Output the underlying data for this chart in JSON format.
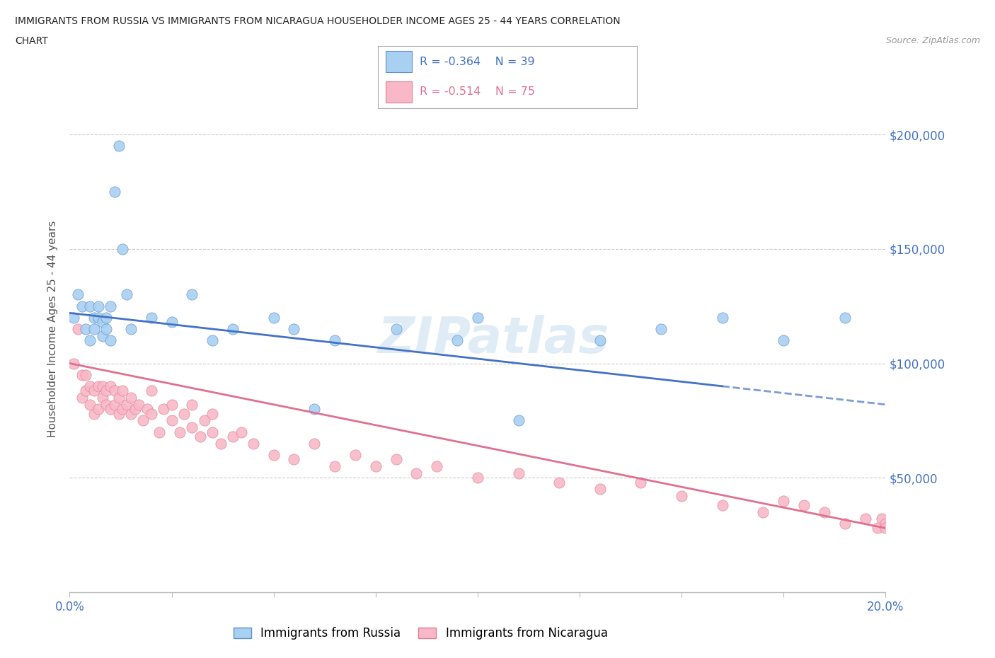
{
  "title_line1": "IMMIGRANTS FROM RUSSIA VS IMMIGRANTS FROM NICARAGUA HOUSEHOLDER INCOME AGES 25 - 44 YEARS CORRELATION",
  "title_line2": "CHART",
  "source_text": "Source: ZipAtlas.com",
  "ylabel": "Householder Income Ages 25 - 44 years",
  "xlim": [
    0.0,
    0.2
  ],
  "ylim": [
    0,
    230000
  ],
  "ytick_values": [
    50000,
    100000,
    150000,
    200000
  ],
  "ytick_labels": [
    "$50,000",
    "$100,000",
    "$150,000",
    "$200,000"
  ],
  "russia_color": "#a8d0f0",
  "russia_edge": "#6090d0",
  "nicaragua_color": "#f8b8c8",
  "nicaragua_edge": "#e08090",
  "russia_line_color": "#4472c4",
  "nicaragua_line_color": "#e07090",
  "watermark": "ZIPatlas",
  "russia_scatter_x": [
    0.001,
    0.002,
    0.003,
    0.004,
    0.005,
    0.005,
    0.006,
    0.006,
    0.007,
    0.007,
    0.008,
    0.008,
    0.009,
    0.009,
    0.01,
    0.01,
    0.011,
    0.012,
    0.013,
    0.014,
    0.015,
    0.02,
    0.025,
    0.03,
    0.035,
    0.04,
    0.05,
    0.055,
    0.06,
    0.065,
    0.08,
    0.095,
    0.1,
    0.11,
    0.13,
    0.145,
    0.16,
    0.175,
    0.19
  ],
  "russia_scatter_y": [
    120000,
    130000,
    125000,
    115000,
    110000,
    125000,
    120000,
    115000,
    125000,
    120000,
    118000,
    112000,
    120000,
    115000,
    110000,
    125000,
    175000,
    195000,
    150000,
    130000,
    115000,
    120000,
    118000,
    130000,
    110000,
    115000,
    120000,
    115000,
    80000,
    110000,
    115000,
    110000,
    120000,
    75000,
    110000,
    115000,
    120000,
    110000,
    120000
  ],
  "nicaragua_scatter_x": [
    0.001,
    0.002,
    0.003,
    0.003,
    0.004,
    0.004,
    0.005,
    0.005,
    0.006,
    0.006,
    0.007,
    0.007,
    0.008,
    0.008,
    0.009,
    0.009,
    0.01,
    0.01,
    0.011,
    0.011,
    0.012,
    0.012,
    0.013,
    0.013,
    0.014,
    0.015,
    0.015,
    0.016,
    0.017,
    0.018,
    0.019,
    0.02,
    0.02,
    0.022,
    0.023,
    0.025,
    0.025,
    0.027,
    0.028,
    0.03,
    0.03,
    0.032,
    0.033,
    0.035,
    0.035,
    0.037,
    0.04,
    0.042,
    0.045,
    0.05,
    0.055,
    0.06,
    0.065,
    0.07,
    0.075,
    0.08,
    0.085,
    0.09,
    0.1,
    0.11,
    0.12,
    0.13,
    0.14,
    0.15,
    0.16,
    0.17,
    0.175,
    0.18,
    0.185,
    0.19,
    0.195,
    0.198,
    0.199,
    0.2,
    0.2
  ],
  "nicaragua_scatter_y": [
    100000,
    115000,
    95000,
    85000,
    95000,
    88000,
    90000,
    82000,
    88000,
    78000,
    90000,
    80000,
    85000,
    90000,
    82000,
    88000,
    80000,
    90000,
    82000,
    88000,
    78000,
    85000,
    80000,
    88000,
    82000,
    78000,
    85000,
    80000,
    82000,
    75000,
    80000,
    78000,
    88000,
    70000,
    80000,
    75000,
    82000,
    70000,
    78000,
    72000,
    82000,
    68000,
    75000,
    70000,
    78000,
    65000,
    68000,
    70000,
    65000,
    60000,
    58000,
    65000,
    55000,
    60000,
    55000,
    58000,
    52000,
    55000,
    50000,
    52000,
    48000,
    45000,
    48000,
    42000,
    38000,
    35000,
    40000,
    38000,
    35000,
    30000,
    32000,
    28000,
    32000,
    30000,
    28000
  ]
}
